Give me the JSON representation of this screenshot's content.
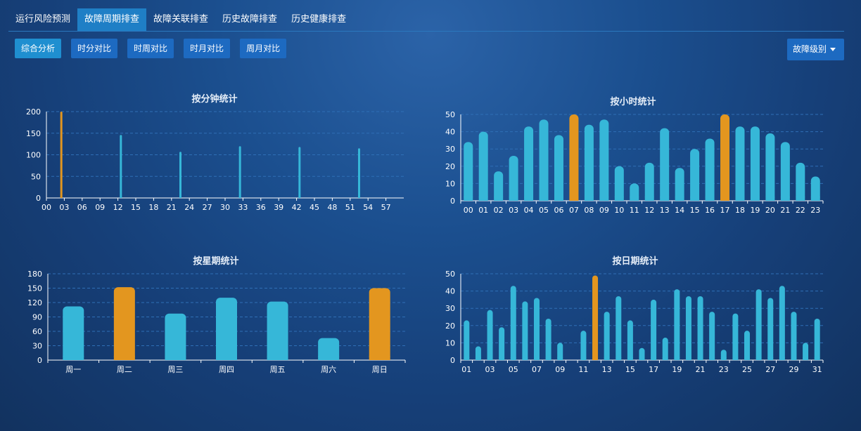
{
  "top_tabs": [
    "运行风险预测",
    "故障周期排查",
    "故障关联排查",
    "历史故障排查",
    "历史健康排查"
  ],
  "sub_buttons": [
    "综合分析",
    "时分对比",
    "时周对比",
    "时月对比",
    "周月对比"
  ],
  "dropdown_label": "故障级别",
  "colors": {
    "normal": "#36b7d8",
    "highlight": "#e3961f",
    "axis": "#ffffff",
    "grid": "#2f6fb6"
  },
  "chart_data": [
    {
      "type": "bar",
      "title": "按分钟统计",
      "x": [
        "00",
        "01",
        "02",
        "03",
        "04",
        "05",
        "06",
        "07",
        "08",
        "09",
        "10",
        "11",
        "12",
        "13",
        "14",
        "15",
        "16",
        "17",
        "18",
        "19",
        "20",
        "21",
        "22",
        "23",
        "24",
        "25",
        "26",
        "27",
        "28",
        "29",
        "30",
        "31",
        "32",
        "33",
        "34",
        "35",
        "36",
        "37",
        "38",
        "39",
        "40",
        "41",
        "42",
        "43",
        "44",
        "45",
        "46",
        "47",
        "48",
        "49",
        "50",
        "51",
        "52",
        "53",
        "54",
        "55",
        "56",
        "57",
        "58",
        "59"
      ],
      "values": [
        0,
        0,
        200,
        0,
        0,
        0,
        0,
        0,
        0,
        0,
        0,
        0,
        146,
        0,
        0,
        0,
        0,
        0,
        0,
        0,
        0,
        0,
        107,
        0,
        0,
        0,
        0,
        0,
        0,
        0,
        0,
        0,
        120,
        0,
        0,
        0,
        0,
        0,
        0,
        0,
        0,
        0,
        118,
        0,
        0,
        0,
        0,
        0,
        0,
        0,
        0,
        0,
        115,
        0,
        0,
        0,
        0,
        0,
        0,
        0
      ],
      "highlight_index": 2,
      "ylim": [
        0,
        200
      ],
      "yticks": [
        0,
        50,
        100,
        150,
        200
      ],
      "xticks_shown": [
        "00",
        "03",
        "06",
        "09",
        "12",
        "15",
        "18",
        "21",
        "24",
        "27",
        "30",
        "33",
        "36",
        "39",
        "42",
        "45",
        "48",
        "51",
        "54",
        "57"
      ]
    },
    {
      "type": "bar",
      "title": "按小时统计",
      "x": [
        "00",
        "01",
        "02",
        "03",
        "04",
        "05",
        "06",
        "07",
        "08",
        "09",
        "10",
        "11",
        "12",
        "13",
        "14",
        "15",
        "16",
        "17",
        "18",
        "19",
        "20",
        "21",
        "22",
        "23"
      ],
      "values": [
        34,
        40,
        17,
        26,
        43,
        47,
        38,
        50,
        44,
        47,
        20,
        10,
        22,
        42,
        19,
        30,
        36,
        50,
        43,
        43,
        39,
        34,
        22,
        14
      ],
      "highlight_indices": [
        7,
        17
      ],
      "ylim": [
        0,
        50
      ],
      "yticks": [
        0,
        10,
        20,
        30,
        40,
        50
      ]
    },
    {
      "type": "bar",
      "title": "按星期统计",
      "x": [
        "周一",
        "周二",
        "周三",
        "周四",
        "周五",
        "周六",
        "周日"
      ],
      "values": [
        112,
        152,
        97,
        130,
        122,
        46,
        150
      ],
      "highlight_indices": [
        1,
        6
      ],
      "ylim": [
        0,
        180
      ],
      "yticks": [
        0,
        30,
        60,
        90,
        120,
        150,
        180
      ]
    },
    {
      "type": "bar",
      "title": "按日期统计",
      "x": [
        "01",
        "02",
        "03",
        "04",
        "05",
        "06",
        "07",
        "08",
        "09",
        "10",
        "11",
        "12",
        "13",
        "14",
        "15",
        "16",
        "17",
        "18",
        "19",
        "20",
        "21",
        "22",
        "23",
        "24",
        "25",
        "26",
        "27",
        "28",
        "29",
        "30",
        "31"
      ],
      "values": [
        23,
        8,
        29,
        19,
        43,
        34,
        36,
        24,
        10,
        0,
        17,
        49,
        28,
        37,
        23,
        7,
        35,
        13,
        41,
        37,
        37,
        28,
        6,
        27,
        17,
        41,
        36,
        43,
        28,
        10,
        24
      ],
      "highlight_indices": [
        11
      ],
      "ylim": [
        0,
        50
      ],
      "yticks": [
        0,
        10,
        20,
        30,
        40,
        50
      ],
      "xticks_shown": [
        "01",
        "03",
        "05",
        "07",
        "09",
        "11",
        "13",
        "15",
        "17",
        "19",
        "21",
        "23",
        "25",
        "27",
        "29",
        "31"
      ]
    }
  ]
}
